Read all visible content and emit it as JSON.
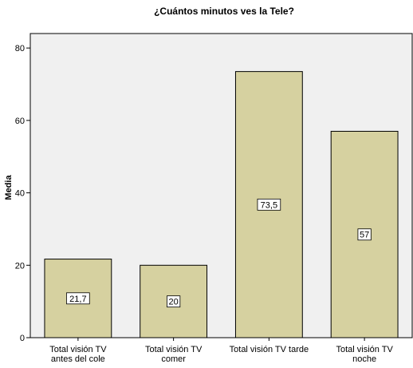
{
  "chart_data": {
    "type": "bar",
    "title": "¿Cuántos minutos ves la Tele?",
    "xlabel": "",
    "ylabel": "Media",
    "ylim": [
      0,
      84
    ],
    "yticks": [
      0,
      20,
      40,
      60,
      80
    ],
    "grid": false,
    "categories": [
      [
        "Total visión TV",
        "antes del cole"
      ],
      [
        "Total visión TV",
        "comer"
      ],
      [
        "Total visión TV tarde"
      ],
      [
        "Total visión TV",
        "noche"
      ]
    ],
    "values": [
      21.7,
      20,
      73.5,
      57
    ],
    "data_labels": [
      "21,7",
      "20",
      "73,5",
      "57"
    ],
    "colors": {
      "plot_background": "#f0f0f0",
      "bar_fill": "#d6d1a0",
      "bar_stroke": "#000000",
      "axis": "#000000",
      "label_box": "#ffffff"
    }
  }
}
